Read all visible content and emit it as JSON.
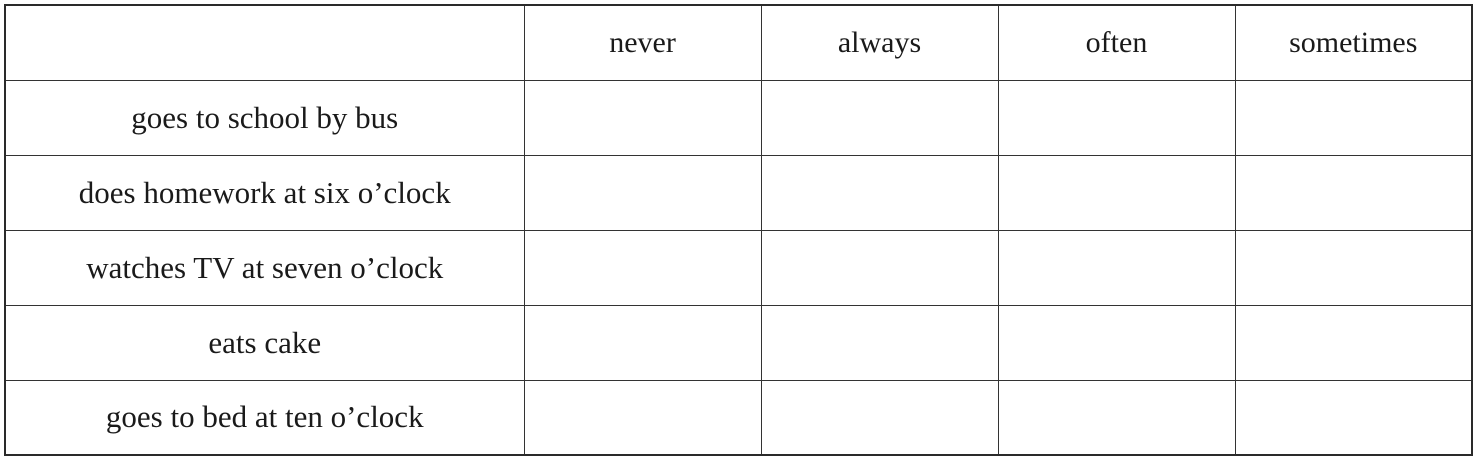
{
  "table": {
    "columns": [
      "",
      "never",
      "always",
      "often",
      "sometimes"
    ],
    "rows": [
      {
        "activity": "goes to school by bus",
        "cells": [
          "",
          "",
          "",
          ""
        ]
      },
      {
        "activity": "does homework at six o’clock",
        "cells": [
          "",
          "",
          "",
          ""
        ]
      },
      {
        "activity": "watches TV at seven o’clock",
        "cells": [
          "",
          "",
          "",
          ""
        ]
      },
      {
        "activity": "eats cake",
        "cells": [
          "",
          "",
          "",
          ""
        ]
      },
      {
        "activity": "goes to bed at ten o’clock",
        "cells": [
          "",
          "",
          "",
          ""
        ]
      }
    ]
  }
}
